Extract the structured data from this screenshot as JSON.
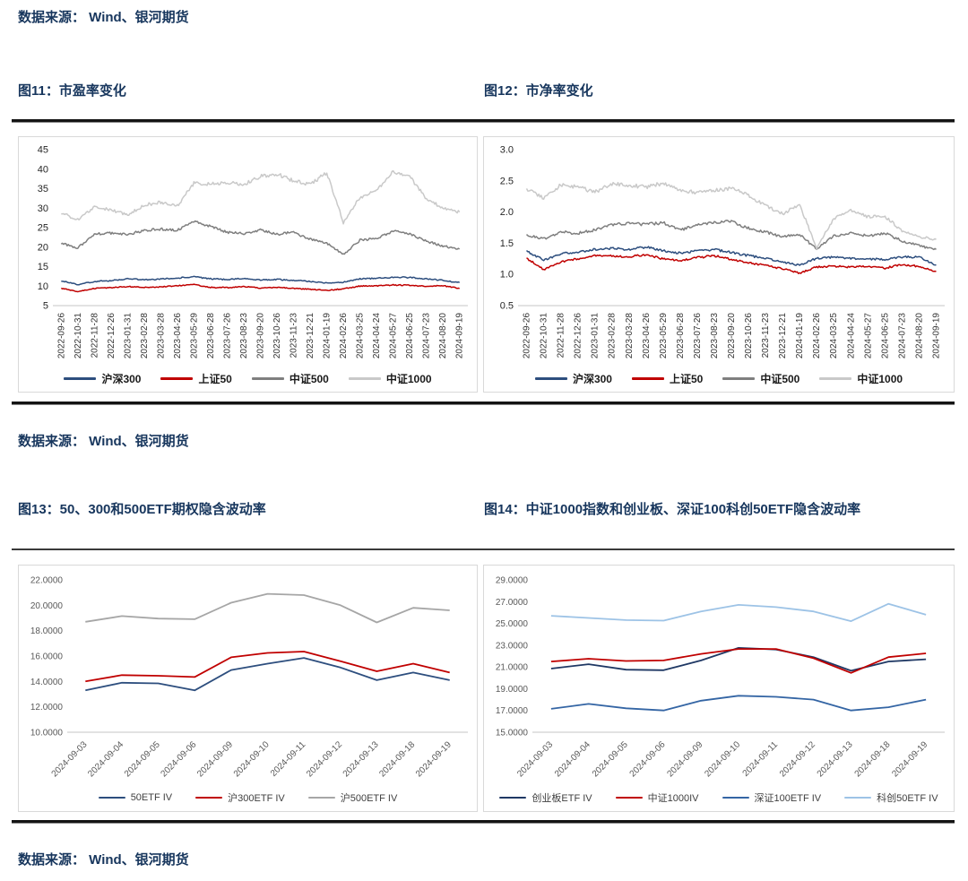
{
  "page": {
    "source_note": "数据来源： Wind、银河期货",
    "text_color": "#17365d",
    "sections": [
      {
        "figures": [
          "图11：市盈率变化",
          "图12：市净率变化"
        ]
      },
      {
        "figures": [
          "图13：50、300和500ETF期权隐含波动率",
          "图14：中证1000指数和创业板、深证100科创50ETF隐含波动率"
        ]
      }
    ]
  },
  "chart_data": [
    {
      "id": "fig11",
      "type": "line",
      "title": "图11：市盈率变化",
      "style": "noisy",
      "grid": false,
      "legend_position": "bottom",
      "xlabel_rotation": 90,
      "ylim": [
        5,
        45
      ],
      "ytick_labels": [
        "5",
        "10",
        "15",
        "20",
        "25",
        "30",
        "35",
        "40",
        "45"
      ],
      "x": [
        "2022-09-26",
        "2022-10-31",
        "2022-11-28",
        "2022-12-26",
        "2023-01-31",
        "2023-02-28",
        "2023-03-28",
        "2023-04-26",
        "2023-05-29",
        "2023-06-28",
        "2023-07-26",
        "2023-08-23",
        "2023-09-20",
        "2023-10-26",
        "2023-11-23",
        "2023-12-21",
        "2024-01-19",
        "2024-02-26",
        "2024-03-25",
        "2024-04-24",
        "2024-05-27",
        "2024-06-25",
        "2024-07-23",
        "2024-08-20",
        "2024-09-19"
      ],
      "series": [
        {
          "name": "沪深300",
          "color": "#2d4e7e",
          "values": [
            11.4,
            10.4,
            11.2,
            11.4,
            11.9,
            11.6,
            11.8,
            12.1,
            12.4,
            11.9,
            11.7,
            12.0,
            11.6,
            11.7,
            11.5,
            11.2,
            10.8,
            11.0,
            11.9,
            12.0,
            12.3,
            12.2,
            11.9,
            11.5,
            10.9
          ]
        },
        {
          "name": "上证50",
          "color": "#c00000",
          "values": [
            9.5,
            8.6,
            9.4,
            9.6,
            9.9,
            9.7,
            9.8,
            10.1,
            10.4,
            9.7,
            9.6,
            9.9,
            9.5,
            9.7,
            9.4,
            9.2,
            8.9,
            9.3,
            10.0,
            10.1,
            10.3,
            10.2,
            10.0,
            10.1,
            9.4
          ]
        },
        {
          "name": "中证500",
          "color": "#7f7f7f",
          "values": [
            21.0,
            19.8,
            23.3,
            23.6,
            23.2,
            24.3,
            24.6,
            24.3,
            26.5,
            25.3,
            23.8,
            23.5,
            24.4,
            23.3,
            23.8,
            22.0,
            21.0,
            18.1,
            21.8,
            22.2,
            24.1,
            23.4,
            21.5,
            20.3,
            19.5
          ]
        },
        {
          "name": "中证1000",
          "color": "#c9c9c9",
          "values": [
            28.8,
            27.0,
            30.2,
            29.6,
            28.2,
            30.8,
            31.5,
            30.6,
            36.5,
            36.2,
            36.6,
            36.0,
            38.2,
            38.8,
            37.0,
            36.0,
            39.2,
            26.3,
            32.8,
            34.5,
            39.3,
            38.0,
            32.5,
            30.0,
            29.0
          ]
        }
      ]
    },
    {
      "id": "fig12",
      "type": "line",
      "title": "图12：市净率变化",
      "style": "noisy",
      "grid": false,
      "legend_position": "bottom",
      "xlabel_rotation": 90,
      "ylim": [
        0.5,
        3.0
      ],
      "ytick_labels": [
        "0.5",
        "1.0",
        "1.5",
        "2.0",
        "2.5",
        "3.0"
      ],
      "x": [
        "2022-09-26",
        "2022-10-31",
        "2022-11-28",
        "2022-12-26",
        "2023-01-31",
        "2023-02-28",
        "2023-03-28",
        "2023-04-26",
        "2023-05-29",
        "2023-06-28",
        "2023-07-26",
        "2023-08-23",
        "2023-09-20",
        "2023-10-26",
        "2023-11-23",
        "2023-12-21",
        "2024-01-19",
        "2024-02-26",
        "2024-03-25",
        "2024-04-24",
        "2024-05-27",
        "2024-06-25",
        "2024-07-23",
        "2024-08-20",
        "2024-09-19"
      ],
      "series": [
        {
          "name": "沪深300",
          "color": "#2d4e7e",
          "values": [
            1.37,
            1.23,
            1.33,
            1.36,
            1.4,
            1.42,
            1.4,
            1.44,
            1.38,
            1.34,
            1.38,
            1.4,
            1.35,
            1.3,
            1.26,
            1.2,
            1.15,
            1.26,
            1.28,
            1.26,
            1.25,
            1.24,
            1.28,
            1.28,
            1.15
          ]
        },
        {
          "name": "上证50",
          "color": "#c00000",
          "values": [
            1.26,
            1.08,
            1.2,
            1.25,
            1.3,
            1.3,
            1.28,
            1.32,
            1.25,
            1.22,
            1.27,
            1.3,
            1.24,
            1.19,
            1.14,
            1.09,
            1.02,
            1.12,
            1.13,
            1.12,
            1.13,
            1.1,
            1.16,
            1.13,
            1.05
          ]
        },
        {
          "name": "中证500",
          "color": "#7f7f7f",
          "values": [
            1.63,
            1.57,
            1.68,
            1.66,
            1.71,
            1.8,
            1.82,
            1.8,
            1.83,
            1.71,
            1.8,
            1.84,
            1.85,
            1.74,
            1.68,
            1.6,
            1.65,
            1.4,
            1.62,
            1.66,
            1.62,
            1.66,
            1.54,
            1.46,
            1.4
          ]
        },
        {
          "name": "中证1000",
          "color": "#c9c9c9",
          "values": [
            2.37,
            2.22,
            2.43,
            2.4,
            2.32,
            2.45,
            2.43,
            2.4,
            2.46,
            2.36,
            2.31,
            2.35,
            2.38,
            2.27,
            2.1,
            1.97,
            2.12,
            1.42,
            1.9,
            2.03,
            1.92,
            1.93,
            1.7,
            1.6,
            1.56
          ]
        }
      ]
    },
    {
      "id": "fig13",
      "type": "line",
      "title": "图13：50、300和500ETF期权隐含波动率",
      "style": "smooth",
      "grid": false,
      "legend_position": "bottom",
      "xlabel_rotation": 45,
      "ylim": [
        10,
        22
      ],
      "ytick_labels": [
        "10.0000",
        "12.0000",
        "14.0000",
        "16.0000",
        "18.0000",
        "20.0000",
        "22.0000"
      ],
      "x": [
        "2024-09-03",
        "2024-09-04",
        "2024-09-05",
        "2024-09-06",
        "2024-09-09",
        "2024-09-10",
        "2024-09-11",
        "2024-09-12",
        "2024-09-13",
        "2024-09-18",
        "2024-09-19"
      ],
      "series": [
        {
          "name": "50ETF IV",
          "color": "#2d4e7e",
          "values": [
            13.3,
            13.9,
            13.85,
            13.3,
            14.9,
            15.4,
            15.85,
            15.1,
            14.1,
            14.7,
            14.1
          ]
        },
        {
          "name": "沪300ETF IV",
          "color": "#c00000",
          "values": [
            14.0,
            14.5,
            14.45,
            14.35,
            15.9,
            16.25,
            16.35,
            15.6,
            14.8,
            15.4,
            14.7
          ]
        },
        {
          "name": "沪500ETF IV",
          "color": "#a6a6a6",
          "values": [
            18.7,
            19.15,
            18.95,
            18.9,
            20.2,
            20.9,
            20.8,
            20.0,
            18.65,
            19.8,
            19.6
          ]
        }
      ]
    },
    {
      "id": "fig14",
      "type": "line",
      "title": "图14：中证1000指数和创业板、深证100科创50ETF隐含波动率",
      "style": "smooth",
      "grid": false,
      "legend_position": "bottom",
      "xlabel_rotation": 45,
      "ylim": [
        15,
        29
      ],
      "ytick_labels": [
        "15.0000",
        "17.0000",
        "19.0000",
        "21.0000",
        "23.0000",
        "25.0000",
        "27.0000",
        "29.0000"
      ],
      "x": [
        "2024-09-03",
        "2024-09-04",
        "2024-09-05",
        "2024-09-06",
        "2024-09-09",
        "2024-09-10",
        "2024-09-11",
        "2024-09-12",
        "2024-09-13",
        "2024-09-18",
        "2024-09-19"
      ],
      "series": [
        {
          "name": "创业板ETF IV",
          "color": "#1f3864",
          "values": [
            20.85,
            21.25,
            20.75,
            20.7,
            21.6,
            22.75,
            22.6,
            21.9,
            20.65,
            21.5,
            21.7
          ]
        },
        {
          "name": "中证1000IV",
          "color": "#c00000",
          "values": [
            21.5,
            21.75,
            21.55,
            21.6,
            22.2,
            22.65,
            22.65,
            21.8,
            20.45,
            21.9,
            22.25
          ]
        },
        {
          "name": "深证100ETF IV",
          "color": "#3465a4",
          "values": [
            17.15,
            17.6,
            17.2,
            17.0,
            17.9,
            18.35,
            18.25,
            18.0,
            17.0,
            17.3,
            18.0
          ]
        },
        {
          "name": "科创50ETF IV",
          "color": "#9dc3e6",
          "values": [
            25.7,
            25.5,
            25.3,
            25.25,
            26.1,
            26.7,
            26.5,
            26.1,
            25.2,
            26.8,
            25.8
          ]
        }
      ]
    }
  ]
}
